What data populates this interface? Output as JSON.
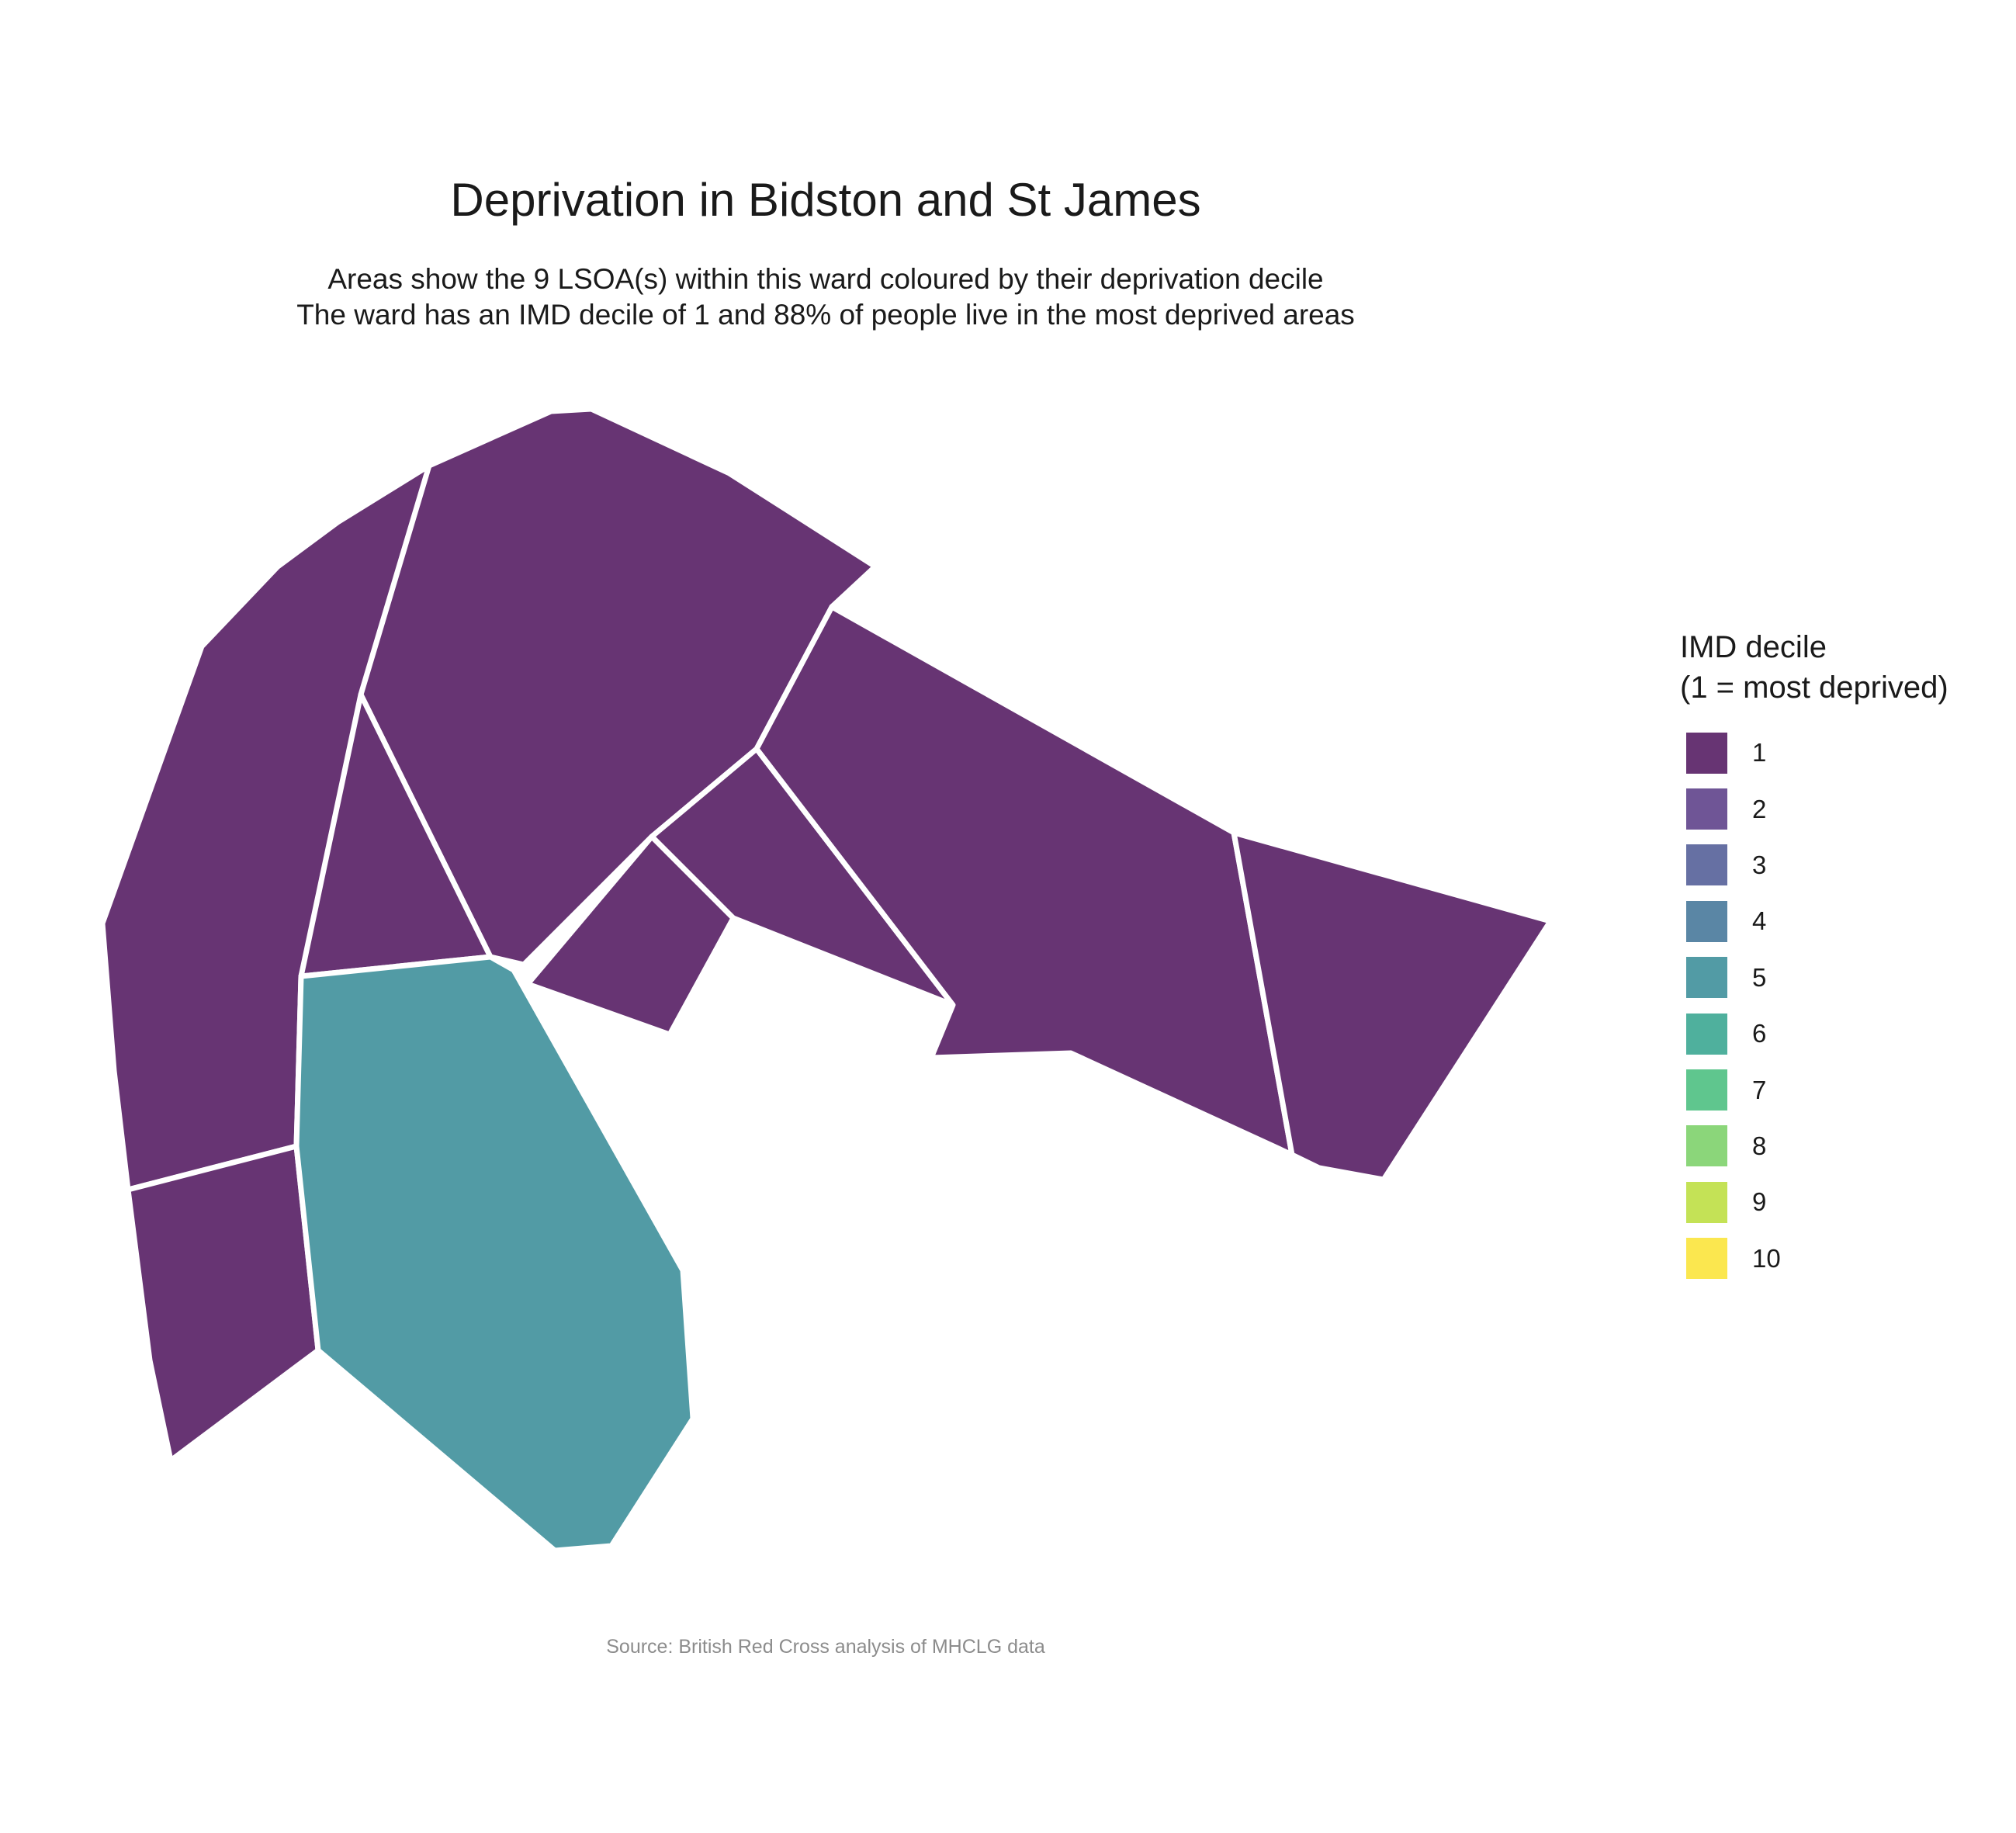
{
  "chart_data": {
    "type": "choropleth-map",
    "title": "Deprivation in Bidston and St James",
    "subtitle_line1": "Areas show the 9 LSOA(s) within this ward coloured by their deprivation decile",
    "subtitle_line2": "The ward has an IMD decile of 1 and 88% of people live in the most deprived areas",
    "caption": "Source: British Red Cross analysis of MHCLG data",
    "legend": {
      "title_line1": "IMD decile",
      "title_line2": "(1 = most deprived)",
      "placement": "right",
      "items": [
        {
          "label": "1",
          "color": "#673473"
        },
        {
          "label": "2",
          "color": "#6f5596"
        },
        {
          "label": "3",
          "color": "#6670a3"
        },
        {
          "label": "4",
          "color": "#5a86a5"
        },
        {
          "label": "5",
          "color": "#529ba5"
        },
        {
          "label": "6",
          "color": "#4fb09d"
        },
        {
          "label": "7",
          "color": "#5fc68e"
        },
        {
          "label": "8",
          "color": "#8bd67a"
        },
        {
          "label": "9",
          "color": "#c4e256"
        },
        {
          "label": "10",
          "color": "#fbe74f"
        }
      ]
    },
    "areas": [
      {
        "decile": 1
      },
      {
        "decile": 1
      },
      {
        "decile": 1
      },
      {
        "decile": 1
      },
      {
        "decile": 1
      },
      {
        "decile": 1
      },
      {
        "decile": 1
      },
      {
        "decile": 1
      },
      {
        "decile": 5
      }
    ]
  }
}
